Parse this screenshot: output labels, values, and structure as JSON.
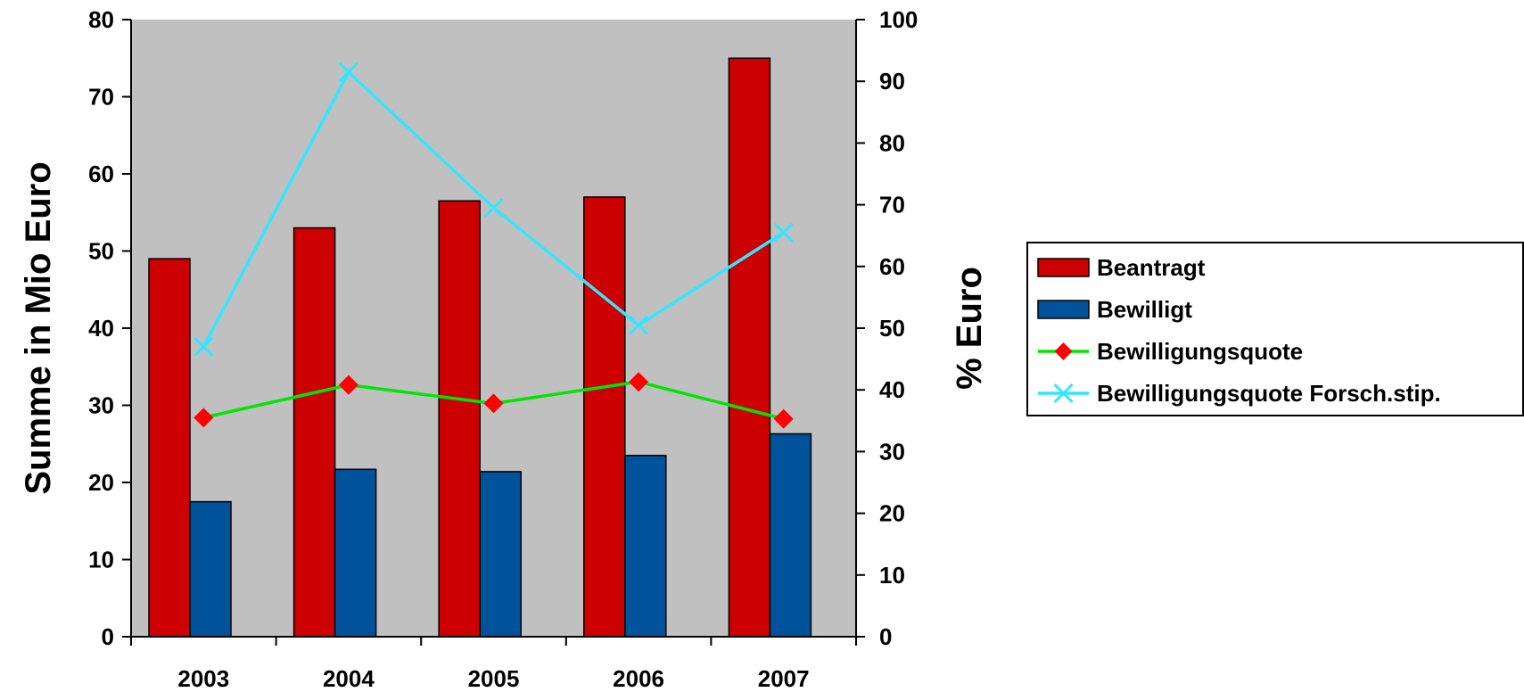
{
  "chart_data": {
    "type": "bar",
    "categories": [
      "2003",
      "2004",
      "2005",
      "2006",
      "2007"
    ],
    "series": [
      {
        "name": "Beantragt",
        "type": "bar",
        "axis": "left",
        "color": "#CC0000",
        "values": [
          49,
          53,
          56.5,
          57,
          75
        ]
      },
      {
        "name": "Bewilligt",
        "type": "bar",
        "axis": "left",
        "color": "#00529B",
        "values": [
          17.5,
          21.7,
          21.4,
          23.5,
          26.3
        ]
      },
      {
        "name": "Bewilligungsquote",
        "type": "line",
        "axis": "right",
        "color": "#00E600",
        "marker": "diamond",
        "marker_color": "#FF0000",
        "values": [
          35.5,
          40.8,
          37.8,
          41.3,
          35.3
        ]
      },
      {
        "name": "Bewilligungsquote Forsch.stip.",
        "type": "line",
        "axis": "right",
        "color": "#33E6FF",
        "marker": "x",
        "marker_color": "#33E6FF",
        "values": [
          47,
          91.5,
          69.5,
          50.5,
          65.5
        ]
      }
    ],
    "ylabel": "Summe in Mio Euro",
    "y2label": "% Euro",
    "ylim": [
      0,
      80
    ],
    "y2lim": [
      0,
      100
    ],
    "yticks": [
      "0",
      "10",
      "20",
      "30",
      "40",
      "50",
      "60",
      "70",
      "80"
    ],
    "y2ticks": [
      "0",
      "10",
      "20",
      "30",
      "40",
      "50",
      "60",
      "70",
      "80",
      "90",
      "100"
    ],
    "plot_background": "#C0C0C0",
    "grid": false,
    "legend_position": "right"
  }
}
